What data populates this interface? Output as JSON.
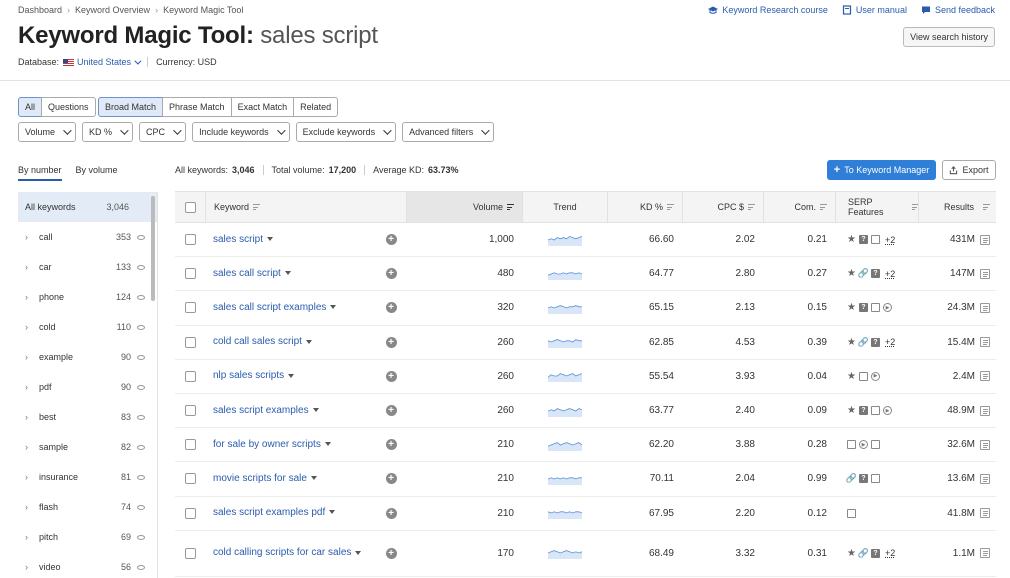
{
  "breadcrumb": [
    "Dashboard",
    "Keyword Overview",
    "Keyword Magic Tool"
  ],
  "toplinks": {
    "course": "Keyword Research course",
    "manual": "User manual",
    "feedback": "Send feedback"
  },
  "title": {
    "prefix": "Keyword Magic Tool:",
    "query": "sales script"
  },
  "view_history": "View search history",
  "database": {
    "label": "Database:",
    "value": "United States",
    "currency": "Currency: USD"
  },
  "filters_row1": {
    "group1": [
      "All",
      "Questions"
    ],
    "group2": [
      "Broad Match",
      "Phrase Match",
      "Exact Match",
      "Related"
    ]
  },
  "filters_row2": [
    "Volume",
    "KD %",
    "CPC",
    "Include keywords",
    "Exclude keywords",
    "Advanced filters"
  ],
  "left_tabs": [
    "By number",
    "By volume"
  ],
  "left_groups": {
    "all": {
      "name": "All keywords",
      "count": "3,046"
    },
    "items": [
      {
        "name": "call",
        "count": "353"
      },
      {
        "name": "car",
        "count": "133"
      },
      {
        "name": "phone",
        "count": "124"
      },
      {
        "name": "cold",
        "count": "110"
      },
      {
        "name": "example",
        "count": "90"
      },
      {
        "name": "pdf",
        "count": "90"
      },
      {
        "name": "best",
        "count": "83"
      },
      {
        "name": "sample",
        "count": "82"
      },
      {
        "name": "insurance",
        "count": "81"
      },
      {
        "name": "flash",
        "count": "74"
      },
      {
        "name": "pitch",
        "count": "69"
      },
      {
        "name": "video",
        "count": "56"
      }
    ]
  },
  "stats": {
    "all_label": "All keywords:",
    "all_value": "3,046",
    "vol_label": "Total volume:",
    "vol_value": "17,200",
    "kd_label": "Average KD:",
    "kd_value": "63.73%"
  },
  "buttons": {
    "keyword_manager": "To Keyword Manager",
    "export": "Export"
  },
  "table": {
    "headers": {
      "keyword": "Keyword",
      "volume": "Volume",
      "trend": "Trend",
      "kd": "KD %",
      "cpc": "CPC $",
      "com": "Com.",
      "serp": "SERP Features",
      "results": "Results"
    },
    "rows": [
      {
        "kw": "sales script",
        "vol": "1,000",
        "kd": "66.60",
        "cpc": "2.02",
        "com": "0.21",
        "serp": [
          "star",
          "q",
          "img"
        ],
        "more": "+2",
        "res": "431M",
        "trend": [
          5,
          6,
          5,
          7,
          6,
          7,
          6,
          8,
          7,
          6,
          7,
          8
        ]
      },
      {
        "kw": "sales call script",
        "vol": "480",
        "kd": "64.77",
        "cpc": "2.80",
        "com": "0.27",
        "serp": [
          "star",
          "link",
          "q"
        ],
        "more": "+2",
        "res": "147M",
        "trend": [
          4,
          5,
          6,
          5,
          5,
          6,
          5,
          6,
          6,
          5,
          6,
          5
        ]
      },
      {
        "kw": "sales call script examples",
        "vol": "320",
        "kd": "65.15",
        "cpc": "2.13",
        "com": "0.15",
        "serp": [
          "star",
          "q",
          "img",
          "vid"
        ],
        "more": "",
        "res": "24.3M",
        "trend": [
          5,
          6,
          5,
          6,
          7,
          6,
          5,
          6,
          6,
          7,
          6,
          6
        ]
      },
      {
        "kw": "cold call sales script",
        "vol": "260",
        "kd": "62.85",
        "cpc": "4.53",
        "com": "0.39",
        "serp": [
          "star",
          "link",
          "q"
        ],
        "more": "+2",
        "res": "15.4M",
        "trend": [
          6,
          5,
          6,
          7,
          6,
          5,
          6,
          6,
          5,
          7,
          6,
          6
        ]
      },
      {
        "kw": "nlp sales scripts",
        "vol": "260",
        "kd": "55.54",
        "cpc": "3.93",
        "com": "0.04",
        "serp": [
          "star",
          "img",
          "vid"
        ],
        "more": "",
        "res": "2.4M",
        "trend": [
          4,
          6,
          5,
          5,
          7,
          6,
          5,
          6,
          7,
          5,
          6,
          7
        ]
      },
      {
        "kw": "sales script examples",
        "vol": "260",
        "kd": "63.77",
        "cpc": "2.40",
        "com": "0.09",
        "serp": [
          "star",
          "q",
          "img",
          "vid"
        ],
        "more": "",
        "res": "48.9M",
        "trend": [
          5,
          6,
          5,
          7,
          6,
          5,
          6,
          7,
          6,
          5,
          7,
          6
        ]
      },
      {
        "kw": "for sale by owner scripts",
        "vol": "210",
        "kd": "62.20",
        "cpc": "3.88",
        "com": "0.28",
        "serp": [
          "img",
          "vid",
          "img"
        ],
        "more": "",
        "res": "32.6M",
        "trend": [
          4,
          5,
          6,
          7,
          5,
          6,
          7,
          6,
          5,
          6,
          7,
          5
        ]
      },
      {
        "kw": "movie scripts for sale",
        "vol": "210",
        "kd": "70.11",
        "cpc": "2.04",
        "com": "0.99",
        "serp": [
          "link",
          "q",
          "img"
        ],
        "more": "",
        "res": "13.6M",
        "trend": [
          5,
          6,
          5,
          6,
          5,
          6,
          5,
          6,
          6,
          5,
          6,
          6
        ]
      },
      {
        "kw": "sales script examples pdf",
        "vol": "210",
        "kd": "67.95",
        "cpc": "2.20",
        "com": "0.12",
        "serp": [
          "img"
        ],
        "more": "",
        "res": "41.8M",
        "trend": [
          6,
          5,
          6,
          5,
          6,
          6,
          5,
          6,
          5,
          6,
          6,
          5
        ]
      },
      {
        "kw": "cold calling scripts for car sales",
        "vol": "170",
        "kd": "68.49",
        "cpc": "3.32",
        "com": "0.31",
        "serp": [
          "star",
          "link",
          "q"
        ],
        "more": "+2",
        "res": "1.1M",
        "trend": [
          5,
          6,
          7,
          6,
          5,
          6,
          7,
          6,
          5,
          6,
          5,
          6
        ]
      }
    ]
  }
}
